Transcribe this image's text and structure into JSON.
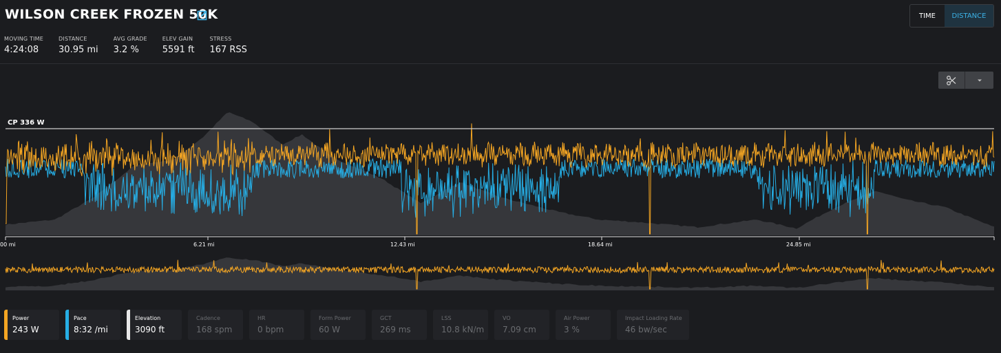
{
  "activity": {
    "title": "WILSON CREEK FROZEN 50K"
  },
  "stats": [
    {
      "label": "MOVING TIME",
      "value": "4:24:08"
    },
    {
      "label": "DISTANCE",
      "value": "30.95 mi"
    },
    {
      "label": "AVG GRADE",
      "value": "3.2 %"
    },
    {
      "label": "ELEV GAIN",
      "value": "5591 ft"
    },
    {
      "label": "STRESS",
      "value": "167 RSS"
    }
  ],
  "view_toggle": {
    "time": "TIME",
    "distance": "DISTANCE",
    "selected": "DISTANCE"
  },
  "toolbar": {
    "scissors_icon": "scissors-icon",
    "dropdown_icon": "caret-down-icon"
  },
  "chart": {
    "cp_label": "CP 336 W",
    "x_ticks": [
      "00 mi",
      "6.21 mi",
      "12.43 mi",
      "18.64 mi",
      "24.85 mi"
    ]
  },
  "colors": {
    "power": "#f5a623",
    "pace": "#26aee5",
    "elevation": "#e8e8e8",
    "accent": "#3cb1e6"
  },
  "chart_data": {
    "type": "line",
    "x_unit": "mi",
    "xlim": [
      0,
      30.95
    ],
    "cp_watts": 336,
    "series": [
      {
        "name": "Power",
        "unit": "W",
        "color": "#f5a623"
      },
      {
        "name": "Pace",
        "unit": "/mi",
        "color": "#26aee5"
      },
      {
        "name": "Elevation",
        "unit": "ft",
        "color": "#e8e8e8",
        "style": "area"
      }
    ]
  },
  "legend": [
    {
      "name": "Power",
      "value": "243 W",
      "active": true,
      "color": "#f5a623"
    },
    {
      "name": "Pace",
      "value": "8:32 /mi",
      "active": true,
      "color": "#26aee5"
    },
    {
      "name": "Elevation",
      "value": "3090 ft",
      "active": true,
      "color": "#e8e8e8"
    },
    {
      "name": "Cadence",
      "value": "168 spm",
      "active": false
    },
    {
      "name": "HR",
      "value": "0 bpm",
      "active": false
    },
    {
      "name": "Form Power",
      "value": "60 W",
      "active": false
    },
    {
      "name": "GCT",
      "value": "269 ms",
      "active": false
    },
    {
      "name": "LSS",
      "value": "10.8 kN/m",
      "active": false
    },
    {
      "name": "VO",
      "value": "7.09 cm",
      "active": false
    },
    {
      "name": "Air Power",
      "value": "3 %",
      "active": false
    },
    {
      "name": "Impact Loading Rate",
      "value": "46 bw/sec",
      "active": false
    }
  ]
}
